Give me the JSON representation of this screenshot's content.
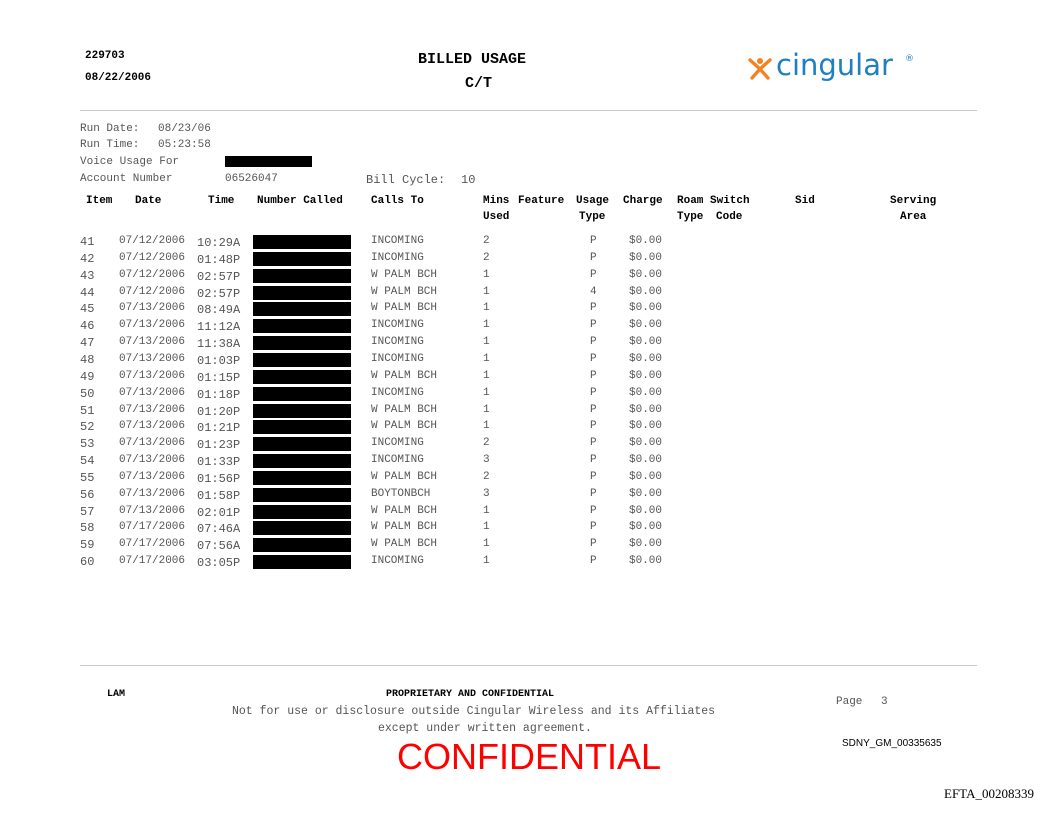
{
  "header": {
    "id": "229703",
    "date": "08/22/2006",
    "title": "BILLED USAGE",
    "subtitle": "C/T",
    "logo_text": "cingular",
    "logo_mark": "®",
    "brand_colors": {
      "orange": "#f58220",
      "blue": "#1f7fc1"
    }
  },
  "meta": {
    "run_date_label": "Run Date:",
    "run_date": "08/23/06",
    "run_time_label": "Run Time:",
    "run_time": "05:23:58",
    "voice_usage_label": "Voice Usage For",
    "account_label": "Account Number",
    "account_number": "06526047",
    "bill_cycle_label": "Bill Cycle:",
    "bill_cycle": "10"
  },
  "columns": {
    "item": "Item",
    "date": "Date",
    "time": "Time",
    "number_called": "Number Called",
    "calls_to": "Calls To",
    "mins_1": "Mins",
    "mins_2": "Used",
    "feature": "Feature",
    "usage_1": "Usage",
    "usage_2": "Type",
    "charge": "Charge",
    "roam_1": "Roam",
    "roam_2": "Type",
    "switch_1": "Switch",
    "switch_2": "Code",
    "sid": "Sid",
    "serving_1": "Serving",
    "serving_2": "Area"
  },
  "rows": [
    {
      "item": "41",
      "date": "07/12/2006",
      "time": "10:29A",
      "calls_to": "INCOMING",
      "mins": "2",
      "usage": "P",
      "charge": "$0.00"
    },
    {
      "item": "42",
      "date": "07/12/2006",
      "time": "01:48P",
      "calls_to": "INCOMING",
      "mins": "2",
      "usage": "P",
      "charge": "$0.00"
    },
    {
      "item": "43",
      "date": "07/12/2006",
      "time": "02:57P",
      "calls_to": "W PALM BCH",
      "mins": "1",
      "usage": "P",
      "charge": "$0.00"
    },
    {
      "item": "44",
      "date": "07/12/2006",
      "time": "02:57P",
      "calls_to": "W PALM BCH",
      "mins": "1",
      "usage": "4",
      "charge": "$0.00"
    },
    {
      "item": "45",
      "date": "07/13/2006",
      "time": "08:49A",
      "calls_to": "W PALM BCH",
      "mins": "1",
      "usage": "P",
      "charge": "$0.00"
    },
    {
      "item": "46",
      "date": "07/13/2006",
      "time": "11:12A",
      "calls_to": "INCOMING",
      "mins": "1",
      "usage": "P",
      "charge": "$0.00"
    },
    {
      "item": "47",
      "date": "07/13/2006",
      "time": "11:38A",
      "calls_to": "INCOMING",
      "mins": "1",
      "usage": "P",
      "charge": "$0.00"
    },
    {
      "item": "48",
      "date": "07/13/2006",
      "time": "01:03P",
      "calls_to": "INCOMING",
      "mins": "1",
      "usage": "P",
      "charge": "$0.00"
    },
    {
      "item": "49",
      "date": "07/13/2006",
      "time": "01:15P",
      "calls_to": "W PALM BCH",
      "mins": "1",
      "usage": "P",
      "charge": "$0.00"
    },
    {
      "item": "50",
      "date": "07/13/2006",
      "time": "01:18P",
      "calls_to": "INCOMING",
      "mins": "1",
      "usage": "P",
      "charge": "$0.00"
    },
    {
      "item": "51",
      "date": "07/13/2006",
      "time": "01:20P",
      "calls_to": "W PALM BCH",
      "mins": "1",
      "usage": "P",
      "charge": "$0.00"
    },
    {
      "item": "52",
      "date": "07/13/2006",
      "time": "01:21P",
      "calls_to": "W PALM BCH",
      "mins": "1",
      "usage": "P",
      "charge": "$0.00"
    },
    {
      "item": "53",
      "date": "07/13/2006",
      "time": "01:23P",
      "calls_to": "INCOMING",
      "mins": "2",
      "usage": "P",
      "charge": "$0.00"
    },
    {
      "item": "54",
      "date": "07/13/2006",
      "time": "01:33P",
      "calls_to": "INCOMING",
      "mins": "3",
      "usage": "P",
      "charge": "$0.00"
    },
    {
      "item": "55",
      "date": "07/13/2006",
      "time": "01:56P",
      "calls_to": "W PALM BCH",
      "mins": "2",
      "usage": "P",
      "charge": "$0.00"
    },
    {
      "item": "56",
      "date": "07/13/2006",
      "time": "01:58P",
      "calls_to": "BOYTONBCH",
      "mins": "3",
      "usage": "P",
      "charge": "$0.00"
    },
    {
      "item": "57",
      "date": "07/13/2006",
      "time": "02:01P",
      "calls_to": "W PALM BCH",
      "mins": "1",
      "usage": "P",
      "charge": "$0.00"
    },
    {
      "item": "58",
      "date": "07/17/2006",
      "time": "07:46A",
      "calls_to": "W PALM BCH",
      "mins": "1",
      "usage": "P",
      "charge": "$0.00"
    },
    {
      "item": "59",
      "date": "07/17/2006",
      "time": "07:56A",
      "calls_to": "W PALM BCH",
      "mins": "1",
      "usage": "P",
      "charge": "$0.00"
    },
    {
      "item": "60",
      "date": "07/17/2006",
      "time": "03:05P",
      "calls_to": "INCOMING",
      "mins": "1",
      "usage": "P",
      "charge": "$0.00"
    }
  ],
  "footer": {
    "code": "LAM",
    "proprietary": "PROPRIETARY AND CONFIDENTIAL",
    "notice_1": "Not for use or disclosure outside Cingular Wireless and its Affiliates",
    "notice_2": "except under written agreement.",
    "page_label": "Page",
    "page_number": "3",
    "stamp": "CONFIDENTIAL",
    "stamp_color": "#ff0000",
    "bates": "SDNY_GM_00335635",
    "efta": "EFTA_00208339"
  }
}
